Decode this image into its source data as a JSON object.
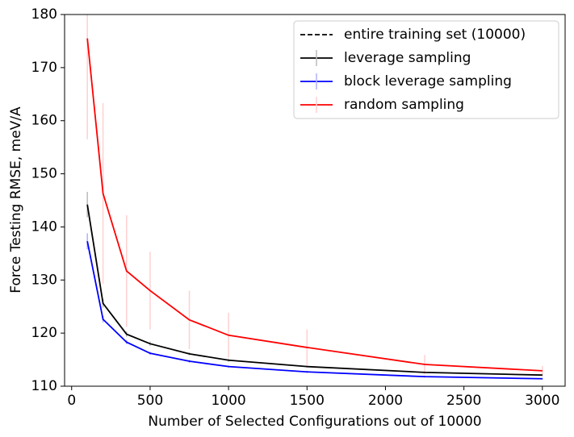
{
  "chart_data": {
    "type": "line",
    "xlabel": "Number of Selected Configurations out of 10000",
    "ylabel": "Force Testing RMSE, meV/A",
    "x": [
      100,
      200,
      350,
      500,
      750,
      1000,
      1500,
      2250,
      3000
    ],
    "reference": {
      "name": "entire training set (10000)",
      "color": "#000000",
      "dashed": true
    },
    "series": [
      {
        "name": "leverage sampling",
        "color": "#000000",
        "error_color": "#bbbbbb",
        "values": [
          144.2,
          125.6,
          119.8,
          118.0,
          116.1,
          114.9,
          113.7,
          112.6,
          112.1
        ],
        "errors": [
          2.4,
          0.8,
          0.5,
          0.4,
          0.3,
          0.3,
          0.2,
          0.2,
          0.2
        ]
      },
      {
        "name": "block leverage sampling",
        "color": "#0000ff",
        "error_color": "#b0b0ff",
        "values": [
          137.3,
          122.6,
          118.3,
          116.2,
          114.7,
          113.7,
          112.7,
          111.8,
          111.4
        ],
        "errors": [
          1.5,
          0.6,
          0.4,
          0.3,
          0.3,
          0.2,
          0.2,
          0.2,
          0.2
        ]
      },
      {
        "name": "random sampling",
        "color": "#ff0000",
        "error_color": "#ffd0d0",
        "values": [
          175.5,
          146.3,
          131.7,
          128.0,
          122.5,
          119.6,
          117.3,
          114.1,
          112.9
        ],
        "errors": [
          19,
          17,
          10.5,
          7.3,
          5.5,
          4.2,
          3.4,
          1.8,
          0.9
        ]
      }
    ],
    "xlim": [
      -45,
      3145
    ],
    "ylim": [
      110,
      180
    ],
    "xticks": [
      0,
      500,
      1000,
      1500,
      2000,
      2500,
      3000
    ],
    "yticks": [
      110,
      120,
      130,
      140,
      150,
      160,
      170,
      180
    ],
    "legend": "upper right"
  }
}
